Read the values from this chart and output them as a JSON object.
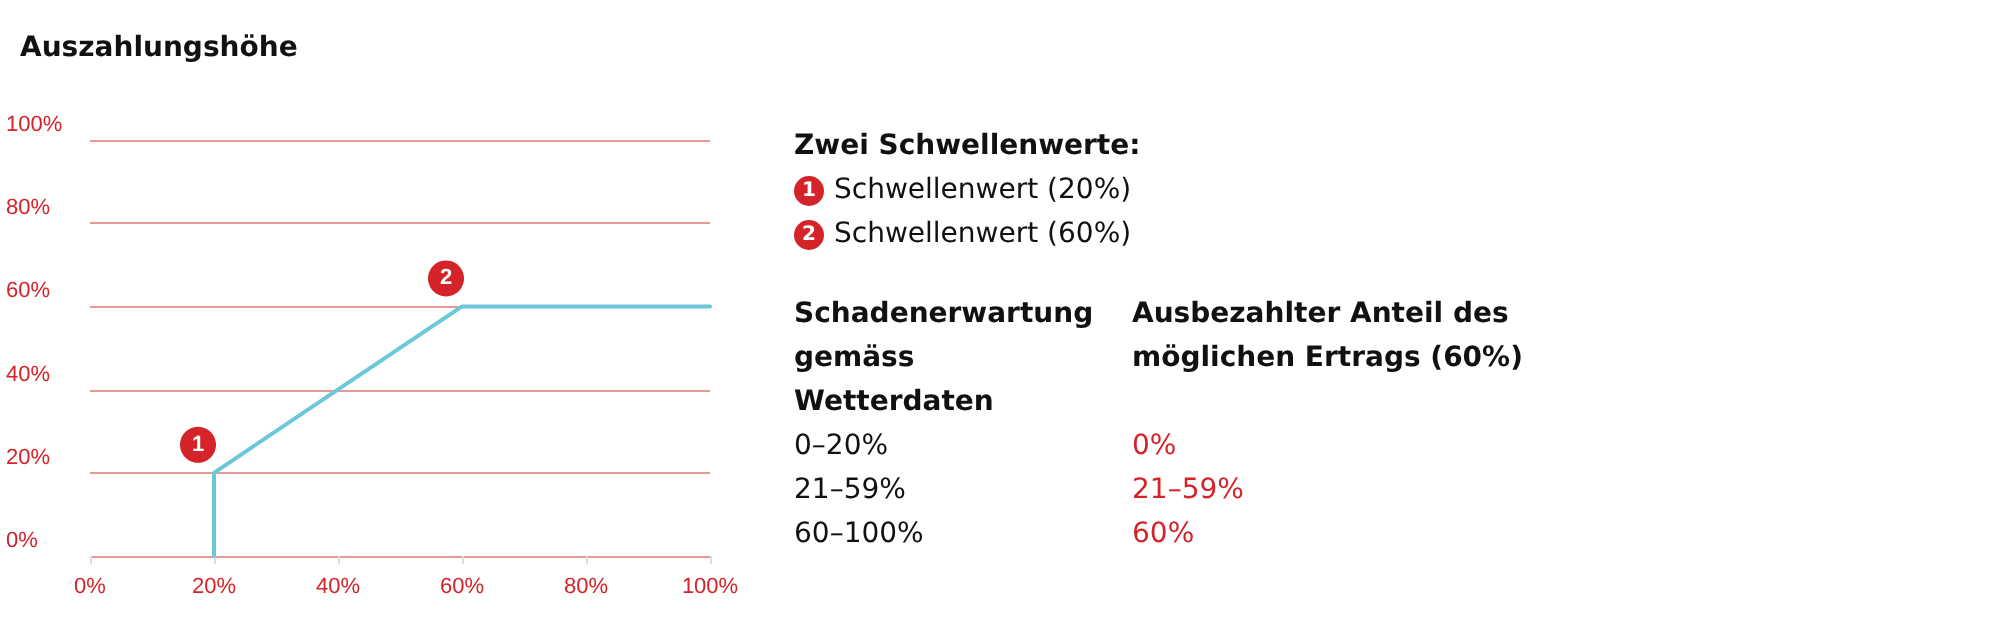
{
  "chart_data": {
    "type": "line",
    "title": "Auszahlungshöhe",
    "x": [
      20,
      20,
      60,
      100
    ],
    "series": [
      {
        "color": "#6cc8d8",
        "values": [
          0,
          20,
          60,
          60
        ]
      }
    ],
    "xlim": [
      0,
      100
    ],
    "ylim": [
      0,
      100
    ],
    "xticks": [
      {
        "value": 0,
        "label": "0%"
      },
      {
        "value": 20,
        "label": "20%"
      },
      {
        "value": 40,
        "label": "40%"
      },
      {
        "value": 60,
        "label": "60%"
      },
      {
        "value": 80,
        "label": "80%"
      },
      {
        "value": 100,
        "label": "100%"
      }
    ],
    "yticks": [
      {
        "value": 0,
        "label": "0%"
      },
      {
        "value": 20,
        "label": "20%"
      },
      {
        "value": 40,
        "label": "40%"
      },
      {
        "value": 60,
        "label": "60%"
      },
      {
        "value": 80,
        "label": "80%"
      },
      {
        "value": 100,
        "label": "100%"
      }
    ],
    "grid": "y",
    "marker": "none",
    "line_style": "solid",
    "annotations": [
      {
        "text": "1",
        "x": 20,
        "y": 20
      },
      {
        "text": "2",
        "x": 60,
        "y": 60
      },
      "Zwei Schwellenwerte:",
      "Schwellenwert (20%)",
      "Schwellenwert (60%)",
      "Schadenerwartung gemäss Wetterdaten",
      "Ausbezahlter Anteil des möglichen Ertrags (60%)",
      "0–20%",
      "0%",
      "21–59%",
      "21–59%",
      "60–100%",
      "60%"
    ]
  }
}
